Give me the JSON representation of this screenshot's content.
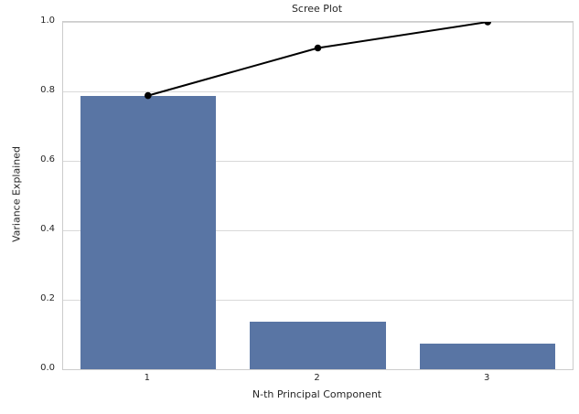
{
  "figure": {
    "background": "#ffffff"
  },
  "chart_data": {
    "type": "bar",
    "title": "Scree Plot",
    "xlabel": "N-th Principal Component",
    "ylabel": "Variance Explained",
    "categories": [
      "1",
      "2",
      "3"
    ],
    "series": [
      {
        "name": "variance-explained-bars",
        "type": "bar",
        "values": [
          0.788,
          0.137,
          0.075
        ],
        "color": "#5975a4"
      },
      {
        "name": "cumulative-variance-line",
        "type": "line",
        "values": [
          0.788,
          0.925,
          1.0
        ],
        "color": "#000000",
        "marker": "circle"
      }
    ],
    "ylim": [
      0.0,
      1.0
    ],
    "yticks": [
      0.0,
      0.2,
      0.4,
      0.6,
      0.8,
      1.0
    ],
    "ytick_labels": [
      "0.0",
      "0.2",
      "0.4",
      "0.6",
      "0.8",
      "1.0"
    ],
    "grid": true,
    "legend": "none",
    "style": {
      "grid_color": "#d9d9d9",
      "spine_color": "#cccccc",
      "text_color": "#262626",
      "bar_width_fraction": 0.8,
      "line_width": 2,
      "marker_radius": 3.8
    }
  }
}
